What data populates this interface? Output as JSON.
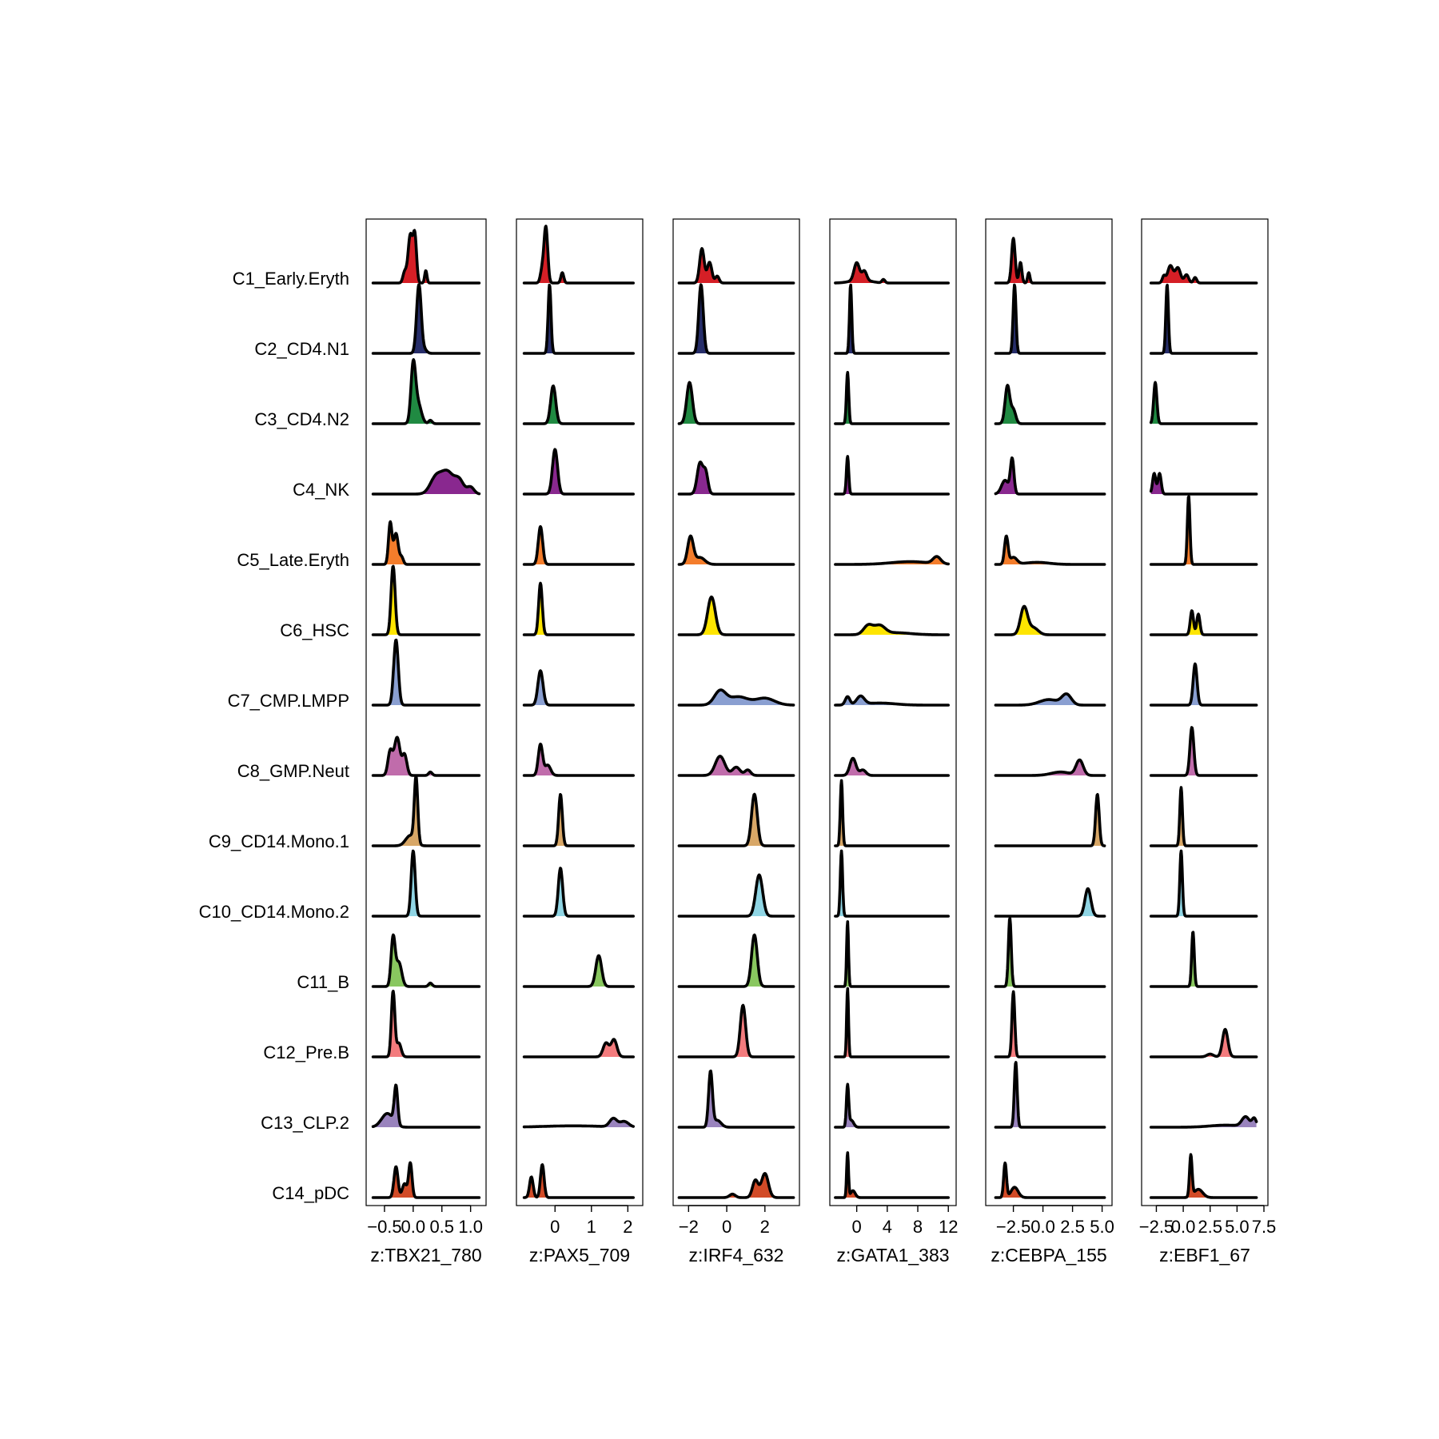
{
  "chart_data": {
    "type": "ridgeline",
    "title": "",
    "clusters": [
      {
        "name": "C1_Early.Eryth",
        "color": "#D51F26"
      },
      {
        "name": "C2_CD4.N1",
        "color": "#272E6A"
      },
      {
        "name": "C3_CD4.N2",
        "color": "#208A42"
      },
      {
        "name": "C4_NK",
        "color": "#89288F"
      },
      {
        "name": "C5_Late.Eryth",
        "color": "#F47D2B"
      },
      {
        "name": "C6_HSC",
        "color": "#FEE500"
      },
      {
        "name": "C7_CMP.LMPP",
        "color": "#8A9FD1"
      },
      {
        "name": "C8_GMP.Neut",
        "color": "#C06CAB"
      },
      {
        "name": "C9_CD14.Mono.1",
        "color": "#D8A767"
      },
      {
        "name": "C10_CD14.Mono.2",
        "color": "#90D5E4"
      },
      {
        "name": "C11_B",
        "color": "#89C75F"
      },
      {
        "name": "C12_Pre.B",
        "color": "#F37B7D"
      },
      {
        "name": "C13_CLP.2",
        "color": "#9983BD"
      },
      {
        "name": "C14_pDC",
        "color": "#D24B27"
      }
    ],
    "panels": [
      {
        "xlabel": "z:TBX21_780",
        "xlim": [
          -0.75,
          1.2
        ],
        "ticks": [
          -0.5,
          0.0,
          0.5,
          1.0
        ],
        "tick_labels": [
          "−0.5",
          "0.0",
          "0.5",
          "1.0"
        ],
        "x_range": [
          -0.7,
          1.15
        ],
        "peaks": [
          [
            [
              -0.05,
              0.04,
              0.7
            ],
            [
              0.03,
              0.03,
              0.65
            ],
            [
              0.22,
              0.02,
              0.18
            ],
            [
              -0.15,
              0.03,
              0.15
            ]
          ],
          [
            [
              0.1,
              0.04,
              1.0
            ],
            [
              0.2,
              0.04,
              0.05
            ]
          ],
          [
            [
              0.0,
              0.04,
              0.8
            ],
            [
              0.08,
              0.06,
              0.3
            ],
            [
              0.3,
              0.03,
              0.05
            ]
          ],
          [
            [
              0.4,
              0.1,
              0.25
            ],
            [
              0.6,
              0.1,
              0.3
            ],
            [
              0.8,
              0.08,
              0.2
            ],
            [
              1.0,
              0.06,
              0.1
            ]
          ],
          [
            [
              -0.4,
              0.03,
              0.6
            ],
            [
              -0.3,
              0.04,
              0.45
            ],
            [
              -0.2,
              0.03,
              0.1
            ]
          ],
          [
            [
              -0.35,
              0.035,
              1.0
            ]
          ],
          [
            [
              -0.3,
              0.04,
              0.95
            ]
          ],
          [
            [
              -0.4,
              0.04,
              0.35
            ],
            [
              -0.28,
              0.05,
              0.55
            ],
            [
              -0.15,
              0.04,
              0.3
            ],
            [
              0.3,
              0.03,
              0.05
            ]
          ],
          [
            [
              0.05,
              0.03,
              0.95
            ],
            [
              -0.05,
              0.08,
              0.15
            ]
          ],
          [
            [
              0.0,
              0.035,
              0.95
            ]
          ],
          [
            [
              -0.35,
              0.035,
              0.7
            ],
            [
              -0.25,
              0.05,
              0.35
            ],
            [
              0.3,
              0.03,
              0.05
            ]
          ],
          [
            [
              -0.35,
              0.03,
              0.95
            ],
            [
              -0.25,
              0.04,
              0.2
            ]
          ],
          [
            [
              -0.3,
              0.03,
              0.55
            ],
            [
              -0.45,
              0.1,
              0.2
            ]
          ],
          [
            [
              -0.3,
              0.035,
              0.45
            ],
            [
              -0.05,
              0.03,
              0.5
            ],
            [
              -0.15,
              0.04,
              0.2
            ]
          ]
        ]
      },
      {
        "xlabel": "z:PAX5_709",
        "xlim": [
          -0.95,
          2.3
        ],
        "ticks": [
          0,
          1,
          2
        ],
        "tick_labels": [
          "0",
          "1",
          "2"
        ],
        "x_range": [
          -0.85,
          2.15
        ],
        "peaks": [
          [
            [
              -0.25,
              0.05,
              0.8
            ],
            [
              -0.35,
              0.05,
              0.2
            ],
            [
              0.2,
              0.04,
              0.15
            ]
          ],
          [
            [
              -0.15,
              0.04,
              1.0
            ]
          ],
          [
            [
              -0.05,
              0.07,
              0.55
            ]
          ],
          [
            [
              0.0,
              0.07,
              0.65
            ]
          ],
          [
            [
              -0.4,
              0.06,
              0.55
            ]
          ],
          [
            [
              -0.4,
              0.05,
              0.75
            ]
          ],
          [
            [
              -0.4,
              0.07,
              0.5
            ]
          ],
          [
            [
              -0.4,
              0.06,
              0.45
            ],
            [
              -0.2,
              0.08,
              0.15
            ]
          ],
          [
            [
              0.15,
              0.05,
              0.75
            ]
          ],
          [
            [
              0.15,
              0.06,
              0.7
            ]
          ],
          [
            [
              1.2,
              0.08,
              0.45
            ]
          ],
          [
            [
              1.4,
              0.08,
              0.2
            ],
            [
              1.62,
              0.08,
              0.25
            ]
          ],
          [
            [
              1.6,
              0.1,
              0.12
            ],
            [
              1.9,
              0.12,
              0.08
            ],
            [
              0.5,
              0.8,
              0.02
            ]
          ],
          [
            [
              -0.65,
              0.05,
              0.3
            ],
            [
              -0.35,
              0.05,
              0.48
            ]
          ]
        ]
      },
      {
        "xlabel": "z:IRF4_632",
        "xlim": [
          -2.6,
          3.6
        ],
        "ticks": [
          -2,
          0,
          2
        ],
        "tick_labels": [
          "−2",
          "0",
          "2"
        ],
        "x_range": [
          -2.5,
          3.5
        ],
        "peaks": [
          [
            [
              -1.3,
              0.12,
              0.5
            ],
            [
              -0.9,
              0.12,
              0.3
            ],
            [
              -0.5,
              0.1,
              0.1
            ]
          ],
          [
            [
              -1.35,
              0.12,
              1.0
            ]
          ],
          [
            [
              -1.95,
              0.15,
              0.6
            ]
          ],
          [
            [
              -1.4,
              0.15,
              0.45
            ],
            [
              -1.1,
              0.12,
              0.3
            ]
          ],
          [
            [
              -1.9,
              0.15,
              0.4
            ],
            [
              -1.4,
              0.25,
              0.1
            ]
          ],
          [
            [
              -0.8,
              0.2,
              0.55
            ]
          ],
          [
            [
              -0.35,
              0.3,
              0.2
            ],
            [
              0.6,
              0.5,
              0.12
            ],
            [
              2.0,
              0.5,
              0.1
            ]
          ],
          [
            [
              -0.35,
              0.25,
              0.28
            ],
            [
              0.5,
              0.2,
              0.12
            ],
            [
              1.1,
              0.15,
              0.08
            ]
          ],
          [
            [
              1.45,
              0.15,
              0.75
            ]
          ],
          [
            [
              1.7,
              0.18,
              0.6
            ]
          ],
          [
            [
              1.45,
              0.15,
              0.75
            ]
          ],
          [
            [
              0.85,
              0.14,
              0.75
            ]
          ],
          [
            [
              -0.85,
              0.1,
              0.8
            ],
            [
              -0.5,
              0.2,
              0.1
            ]
          ],
          [
            [
              0.3,
              0.15,
              0.05
            ],
            [
              1.5,
              0.15,
              0.25
            ],
            [
              2.0,
              0.18,
              0.35
            ]
          ]
        ]
      },
      {
        "xlabel": "z:GATA1_383",
        "xlim": [
          -3,
          12.5
        ],
        "ticks": [
          0,
          4,
          8,
          12
        ],
        "tick_labels": [
          "0",
          "4",
          "8",
          "12"
        ],
        "x_range": [
          -2.8,
          12.0
        ],
        "peaks": [
          [
            [
              0.0,
              0.35,
              0.25
            ],
            [
              1.0,
              0.3,
              0.13
            ],
            [
              3.5,
              0.2,
              0.05
            ],
            [
              0.5,
              1.2,
              0.05
            ]
          ],
          [
            [
              -0.8,
              0.15,
              1.0
            ]
          ],
          [
            [
              -1.2,
              0.15,
              0.75
            ]
          ],
          [
            [
              -1.2,
              0.15,
              0.55
            ]
          ],
          [
            [
              10.5,
              0.5,
              0.1
            ],
            [
              7.0,
              2.5,
              0.04
            ]
          ],
          [
            [
              1.5,
              0.6,
              0.13
            ],
            [
              3.0,
              0.7,
              0.12
            ],
            [
              5.0,
              2.0,
              0.03
            ]
          ],
          [
            [
              -1.2,
              0.3,
              0.12
            ],
            [
              0.5,
              0.5,
              0.12
            ],
            [
              3.0,
              2.0,
              0.03
            ]
          ],
          [
            [
              -0.5,
              0.4,
              0.25
            ],
            [
              0.8,
              0.4,
              0.08
            ]
          ],
          [
            [
              -2.0,
              0.15,
              0.95
            ]
          ],
          [
            [
              -2.0,
              0.15,
              0.95
            ]
          ],
          [
            [
              -1.2,
              0.12,
              0.95
            ]
          ],
          [
            [
              -1.2,
              0.12,
              1.0
            ]
          ],
          [
            [
              -1.2,
              0.15,
              0.6
            ],
            [
              -0.7,
              0.3,
              0.1
            ]
          ],
          [
            [
              -1.2,
              0.12,
              0.65
            ],
            [
              -0.5,
              0.3,
              0.1
            ]
          ]
        ]
      },
      {
        "xlabel": "z:CEBPA_155",
        "xlim": [
          -4.5,
          5.5
        ],
        "ticks": [
          -2.5,
          0.0,
          2.5,
          5.0
        ],
        "tick_labels": [
          "−2.5",
          "0.0",
          "2.5",
          "5.0"
        ],
        "x_range": [
          -4.0,
          5.2
        ],
        "peaks": [
          [
            [
              -2.5,
              0.15,
              0.65
            ],
            [
              -1.9,
              0.12,
              0.3
            ],
            [
              -1.2,
              0.1,
              0.15
            ]
          ],
          [
            [
              -2.4,
              0.12,
              1.0
            ]
          ],
          [
            [
              -3.0,
              0.2,
              0.55
            ],
            [
              -2.5,
              0.2,
              0.2
            ]
          ],
          [
            [
              -2.6,
              0.15,
              0.5
            ],
            [
              -3.2,
              0.3,
              0.2
            ]
          ],
          [
            [
              -3.1,
              0.15,
              0.4
            ],
            [
              -2.5,
              0.3,
              0.1
            ],
            [
              -0.5,
              1.0,
              0.03
            ]
          ],
          [
            [
              -1.6,
              0.3,
              0.4
            ],
            [
              -0.8,
              0.4,
              0.1
            ]
          ],
          [
            [
              0.5,
              0.8,
              0.08
            ],
            [
              2.0,
              0.4,
              0.15
            ]
          ],
          [
            [
              3.1,
              0.3,
              0.22
            ],
            [
              1.5,
              0.8,
              0.05
            ]
          ],
          [
            [
              4.6,
              0.15,
              0.75
            ]
          ],
          [
            [
              3.8,
              0.25,
              0.4
            ]
          ],
          [
            [
              -2.8,
              0.12,
              1.0
            ]
          ],
          [
            [
              -2.5,
              0.12,
              0.95
            ]
          ],
          [
            [
              -2.3,
              0.12,
              0.95
            ]
          ],
          [
            [
              -3.2,
              0.12,
              0.5
            ],
            [
              -2.4,
              0.3,
              0.15
            ]
          ]
        ]
      },
      {
        "xlabel": "z:EBF1_67",
        "xlim": [
          -3.5,
          7.5
        ],
        "ticks": [
          -2.5,
          0.0,
          2.5,
          5.0,
          7.5
        ],
        "tick_labels": [
          "−2.5",
          "0.0",
          "2.5",
          "5.0",
          "7.5"
        ],
        "x_range": [
          -3.0,
          6.8
        ],
        "peaks": [
          [
            [
              -1.2,
              0.25,
              0.25
            ],
            [
              -0.5,
              0.25,
              0.22
            ],
            [
              0.3,
              0.2,
              0.12
            ],
            [
              1.1,
              0.15,
              0.08
            ],
            [
              -1.8,
              0.15,
              0.1
            ]
          ],
          [
            [
              -1.5,
              0.12,
              1.0
            ]
          ],
          [
            [
              -2.6,
              0.15,
              0.6
            ]
          ],
          [
            [
              -2.7,
              0.15,
              0.3
            ],
            [
              -2.2,
              0.15,
              0.3
            ]
          ],
          [
            [
              0.5,
              0.12,
              1.0
            ]
          ],
          [
            [
              0.8,
              0.15,
              0.35
            ],
            [
              1.4,
              0.15,
              0.3
            ]
          ],
          [
            [
              1.1,
              0.18,
              0.6
            ]
          ],
          [
            [
              0.8,
              0.18,
              0.7
            ]
          ],
          [
            [
              -0.2,
              0.12,
              0.85
            ]
          ],
          [
            [
              -0.2,
              0.12,
              0.95
            ]
          ],
          [
            [
              0.9,
              0.12,
              0.8
            ]
          ],
          [
            [
              3.9,
              0.25,
              0.4
            ],
            [
              2.5,
              0.3,
              0.04
            ]
          ],
          [
            [
              5.8,
              0.35,
              0.14
            ],
            [
              6.6,
              0.2,
              0.12
            ],
            [
              4.0,
              1.5,
              0.03
            ]
          ],
          [
            [
              0.7,
              0.12,
              0.6
            ],
            [
              1.4,
              0.4,
              0.12
            ]
          ]
        ]
      }
    ]
  }
}
